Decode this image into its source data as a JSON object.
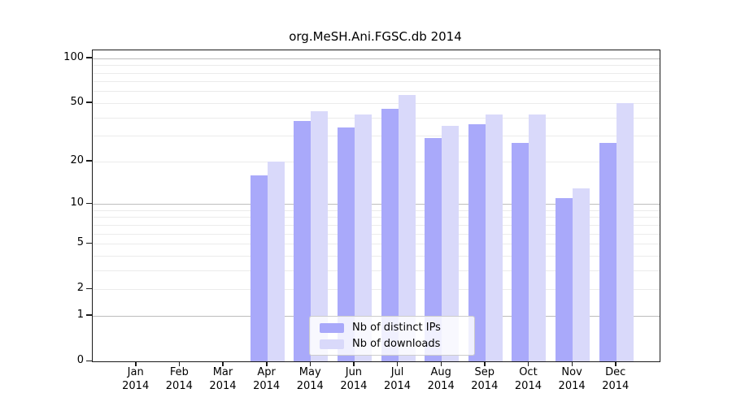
{
  "title": "org.MeSH.Ani.FGSC.db 2014",
  "legend": {
    "items": [
      {
        "label": "Nb of distinct IPs",
        "color": "#a9a9fa"
      },
      {
        "label": "Nb of downloads",
        "color": "#d9d9fa"
      }
    ]
  },
  "axis": {
    "y_labeled_ticks": [
      100,
      50,
      20,
      10,
      5,
      2,
      1,
      0
    ],
    "y_major_gridlines": [
      1,
      10,
      100
    ],
    "y_minor_gridlines": [
      2,
      3,
      4,
      5,
      6,
      7,
      8,
      9,
      20,
      30,
      40,
      50,
      60,
      70,
      80,
      90
    ],
    "x_tick_top_labels": [
      "Jan",
      "Feb",
      "Mar",
      "Apr",
      "May",
      "Jun",
      "Jul",
      "Aug",
      "Sep",
      "Oct",
      "Nov",
      "Dec"
    ],
    "x_tick_bottom_labels": [
      "2014",
      "2014",
      "2014",
      "2014",
      "2014",
      "2014",
      "2014",
      "2014",
      "2014",
      "2014",
      "2014",
      "2014"
    ]
  },
  "chart_data": {
    "type": "bar",
    "title": "org.MeSH.Ani.FGSC.db 2014",
    "categories": [
      "Jan 2014",
      "Feb 2014",
      "Mar 2014",
      "Apr 2014",
      "May 2014",
      "Jun 2014",
      "Jul 2014",
      "Aug 2014",
      "Sep 2014",
      "Oct 2014",
      "Nov 2014",
      "Dec 2014"
    ],
    "series": [
      {
        "name": "Nb of distinct IPs",
        "color": "#a9a9fa",
        "values": [
          0,
          0,
          0,
          16,
          38,
          34,
          46,
          29,
          36,
          27,
          11,
          27
        ]
      },
      {
        "name": "Nb of downloads",
        "color": "#d9d9fa",
        "values": [
          0,
          0,
          0,
          20,
          44,
          42,
          57,
          35,
          42,
          42,
          13,
          50
        ]
      }
    ],
    "xlabel": "",
    "ylabel": "",
    "y_scale": "log1p",
    "y_tick_values": [
      0,
      1,
      2,
      5,
      10,
      20,
      50,
      100
    ],
    "ylim": [
      0,
      113
    ],
    "grid": true,
    "legend_position": "lower center"
  }
}
